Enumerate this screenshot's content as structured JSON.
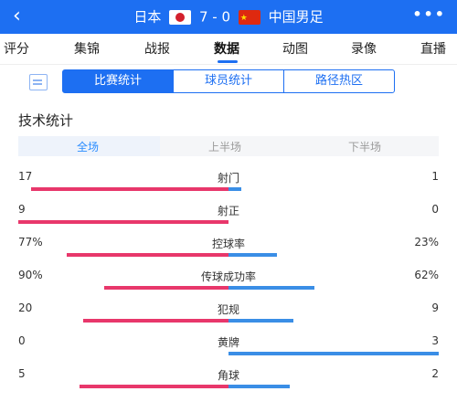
{
  "header": {
    "back_icon": "back-arrow-icon",
    "home_team": "日本",
    "score": "7 - 0",
    "away_team": "中国男足",
    "more_icon": "more-dots-icon"
  },
  "tabs": [
    "评分",
    "集锦",
    "战报",
    "数据",
    "动图",
    "录像",
    "直播"
  ],
  "active_tab": "数据",
  "subtabs": [
    "比赛统计",
    "球员统计",
    "路径热区"
  ],
  "active_subtab": "比赛统计",
  "section_title": "技术统计",
  "periods": [
    "全场",
    "上半场",
    "下半场"
  ],
  "active_period": "全场",
  "colors": {
    "primary": "#1d6ff2",
    "home_bar": "#e8376b",
    "away_bar": "#3a8ee6"
  },
  "stats": [
    {
      "label": "射门",
      "left": "17",
      "right": "1",
      "left_frac": 0.94,
      "right_frac": 0.06
    },
    {
      "label": "射正",
      "left": "9",
      "right": "0",
      "left_frac": 1.0,
      "right_frac": 0.0
    },
    {
      "label": "控球率",
      "left": "77%",
      "right": "23%",
      "left_frac": 0.77,
      "right_frac": 0.23
    },
    {
      "label": "传球成功率",
      "left": "90%",
      "right": "62%",
      "left_frac": 0.59,
      "right_frac": 0.41
    },
    {
      "label": "犯规",
      "left": "20",
      "right": "9",
      "left_frac": 0.69,
      "right_frac": 0.31
    },
    {
      "label": "黄牌",
      "left": "0",
      "right": "3",
      "left_frac": 0.0,
      "right_frac": 1.0
    },
    {
      "label": "角球",
      "left": "5",
      "right": "2",
      "left_frac": 0.71,
      "right_frac": 0.29
    }
  ]
}
